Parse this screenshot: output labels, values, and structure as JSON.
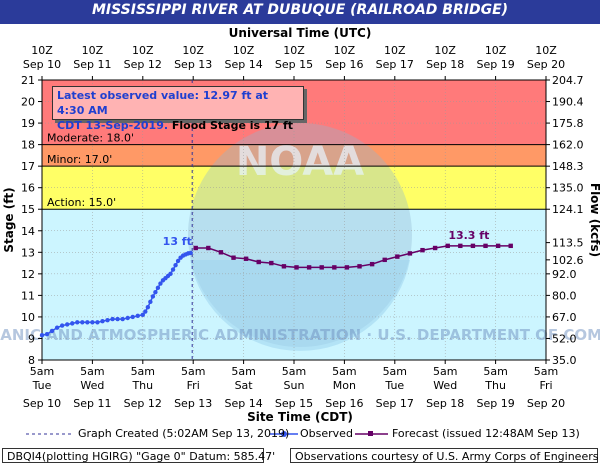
{
  "header": {
    "title": "MISSISSIPPI RIVER AT DUBUQUE (RAILROAD BRIDGE)"
  },
  "axes": {
    "top_title": "Universal Time (UTC)",
    "bottom_title": "Site Time (CDT)",
    "left_title": "Stage (ft)",
    "right_title": "Flow (kcfs)"
  },
  "observed_box": {
    "line1": "Latest observed value: 12.97 ft at 4:30 AM",
    "line2_blue": "CDT 13-Sep-2019.",
    "line2_black": " Flood Stage is 17 ft"
  },
  "legend": {
    "graph_created": "Graph Created (5:02AM Sep 13, 2019)",
    "observed": "Observed",
    "forecast": "Forecast (issued 12:48AM Sep 13)"
  },
  "footer": {
    "left": "DBQI4(plotting HGIRG) \"Gage 0\" Datum:  585.47'",
    "right": "Observations courtesy of U.S. Army Corps of Engineers"
  },
  "colors": {
    "title_band": "#2b3b9a",
    "major_flood": "#ff7a7a",
    "moderate_flood": "#ff9966",
    "minor_flood": "#ffff66",
    "plot_bg": "#ccf5ff",
    "observed": "#3355ee",
    "forecast": "#660066"
  },
  "watermark": {
    "text": "NATIONAL OCEANIC AND ATMOSPHERIC ADMINISTRATION · U.S. DEPARTMENT OF COMMERCE · NOAA"
  },
  "chart_data": {
    "type": "line",
    "x_unit": "days since Sep 10 5am CDT",
    "xlim": [
      0,
      10
    ],
    "ylim": [
      8,
      21
    ],
    "y2lim": [
      35.0,
      204.7
    ],
    "top_ticks": [
      {
        "top": "10Z",
        "bottom": "Sep 10"
      },
      {
        "top": "10Z",
        "bottom": "Sep 11"
      },
      {
        "top": "10Z",
        "bottom": "Sep 12"
      },
      {
        "top": "10Z",
        "bottom": "Sep 13"
      },
      {
        "top": "10Z",
        "bottom": "Sep 14"
      },
      {
        "top": "10Z",
        "bottom": "Sep 15"
      },
      {
        "top": "10Z",
        "bottom": "Sep 16"
      },
      {
        "top": "10Z",
        "bottom": "Sep 17"
      },
      {
        "top": "10Z",
        "bottom": "Sep 18"
      },
      {
        "top": "10Z",
        "bottom": "Sep 19"
      },
      {
        "top": "10Z",
        "bottom": "Sep 20"
      }
    ],
    "bottom_ticks": [
      {
        "time": "5am",
        "day": "Tue",
        "date": "Sep 10"
      },
      {
        "time": "5am",
        "day": "Wed",
        "date": "Sep 11"
      },
      {
        "time": "5am",
        "day": "Thu",
        "date": "Sep 12"
      },
      {
        "time": "5am",
        "day": "Fri",
        "date": "Sep 13"
      },
      {
        "time": "5am",
        "day": "Sat",
        "date": "Sep 14"
      },
      {
        "time": "5am",
        "day": "Sun",
        "date": "Sep 15"
      },
      {
        "time": "5am",
        "day": "Mon",
        "date": "Sep 16"
      },
      {
        "time": "5am",
        "day": "Tue",
        "date": "Sep 17"
      },
      {
        "time": "5am",
        "day": "Wed",
        "date": "Sep 18"
      },
      {
        "time": "5am",
        "day": "Thu",
        "date": "Sep 19"
      },
      {
        "time": "5am",
        "day": "Fri",
        "date": "Sep 20"
      }
    ],
    "y_ticks": [
      8,
      9,
      10,
      11,
      12,
      13,
      14,
      15,
      16,
      17,
      18,
      19,
      20,
      21
    ],
    "y2_ticks": [
      {
        "stage": 8,
        "label": "35.0"
      },
      {
        "stage": 9,
        "label": "52.0"
      },
      {
        "stage": 10,
        "label": "67.0"
      },
      {
        "stage": 11,
        "label": "80.0"
      },
      {
        "stage": 12,
        "label": "92.0"
      },
      {
        "stage": 12.65,
        "label": "102.6"
      },
      {
        "stage": 13.45,
        "label": "113.5"
      },
      {
        "stage": 15,
        "label": "124.1"
      },
      {
        "stage": 16,
        "label": "135.0"
      },
      {
        "stage": 17,
        "label": "148.3"
      },
      {
        "stage": 18,
        "label": "162.0"
      },
      {
        "stage": 19,
        "label": "175.8"
      },
      {
        "stage": 20,
        "label": "190.4"
      },
      {
        "stage": 21,
        "label": "204.7"
      }
    ],
    "flood_categories": [
      {
        "name": "Action",
        "label": "Action: 15.0'",
        "stage": 15.0
      },
      {
        "name": "Minor",
        "label": "Minor: 17.0'",
        "stage": 17.0
      },
      {
        "name": "Moderate",
        "label": "Moderate: 18.0'",
        "stage": 18.0
      }
    ],
    "graph_created_x": 2.98,
    "series": [
      {
        "name": "Observed",
        "marker": "circle",
        "points": [
          [
            0.0,
            9.15
          ],
          [
            0.1,
            9.2
          ],
          [
            0.2,
            9.35
          ],
          [
            0.3,
            9.5
          ],
          [
            0.4,
            9.6
          ],
          [
            0.5,
            9.65
          ],
          [
            0.6,
            9.7
          ],
          [
            0.7,
            9.75
          ],
          [
            0.8,
            9.75
          ],
          [
            0.9,
            9.75
          ],
          [
            1.0,
            9.75
          ],
          [
            1.1,
            9.75
          ],
          [
            1.2,
            9.8
          ],
          [
            1.3,
            9.85
          ],
          [
            1.4,
            9.9
          ],
          [
            1.5,
            9.9
          ],
          [
            1.6,
            9.9
          ],
          [
            1.7,
            9.95
          ],
          [
            1.8,
            10.0
          ],
          [
            1.9,
            10.05
          ],
          [
            2.0,
            10.1
          ],
          [
            2.05,
            10.25
          ],
          [
            2.1,
            10.45
          ],
          [
            2.15,
            10.7
          ],
          [
            2.2,
            10.95
          ],
          [
            2.25,
            11.15
          ],
          [
            2.3,
            11.35
          ],
          [
            2.35,
            11.55
          ],
          [
            2.4,
            11.7
          ],
          [
            2.45,
            11.8
          ],
          [
            2.5,
            11.9
          ],
          [
            2.55,
            12.0
          ],
          [
            2.6,
            12.2
          ],
          [
            2.65,
            12.4
          ],
          [
            2.7,
            12.6
          ],
          [
            2.75,
            12.75
          ],
          [
            2.8,
            12.85
          ],
          [
            2.85,
            12.9
          ],
          [
            2.9,
            12.95
          ],
          [
            2.95,
            12.97
          ]
        ],
        "label": "13 ft"
      },
      {
        "name": "Forecast",
        "marker": "square",
        "points": [
          [
            3.05,
            13.2
          ],
          [
            3.3,
            13.2
          ],
          [
            3.55,
            13.0
          ],
          [
            3.8,
            12.75
          ],
          [
            4.05,
            12.7
          ],
          [
            4.3,
            12.55
          ],
          [
            4.55,
            12.5
          ],
          [
            4.8,
            12.35
          ],
          [
            5.05,
            12.3
          ],
          [
            5.3,
            12.3
          ],
          [
            5.55,
            12.3
          ],
          [
            5.8,
            12.3
          ],
          [
            6.05,
            12.3
          ],
          [
            6.3,
            12.35
          ],
          [
            6.55,
            12.45
          ],
          [
            6.8,
            12.65
          ],
          [
            7.05,
            12.8
          ],
          [
            7.3,
            12.95
          ],
          [
            7.55,
            13.1
          ],
          [
            7.8,
            13.2
          ],
          [
            8.05,
            13.3
          ],
          [
            8.3,
            13.3
          ],
          [
            8.55,
            13.3
          ],
          [
            8.8,
            13.3
          ],
          [
            9.05,
            13.3
          ],
          [
            9.3,
            13.3
          ]
        ],
        "label": "13.3 ft"
      }
    ]
  }
}
